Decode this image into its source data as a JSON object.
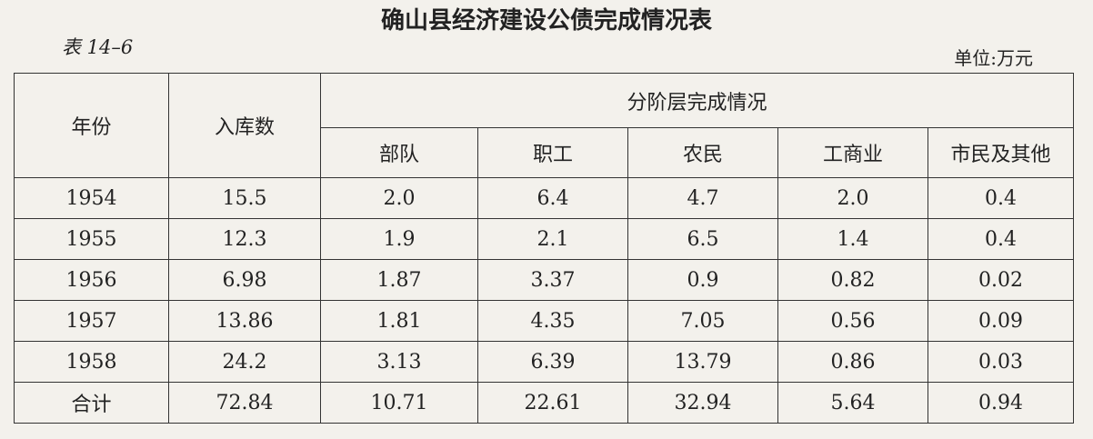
{
  "header": {
    "title": "确山县经济建设公债完成情况表",
    "table_label": "表 14–6",
    "unit": "单位:万元"
  },
  "table": {
    "header": {
      "year": "年份",
      "stored": "入库数",
      "group": "分阶层完成情况",
      "subcolumns": [
        "部队",
        "职工",
        "农民",
        "工商业",
        "市民及其他"
      ]
    },
    "rows": [
      [
        "1954",
        "15.5",
        "2.0",
        "6.4",
        "4.7",
        "2.0",
        "0.4"
      ],
      [
        "1955",
        "12.3",
        "1.9",
        "2.1",
        "6.5",
        "1.4",
        "0.4"
      ],
      [
        "1956",
        "6.98",
        "1.87",
        "3.37",
        "0.9",
        "0.82",
        "0.02"
      ],
      [
        "1957",
        "13.86",
        "1.81",
        "4.35",
        "7.05",
        "0.56",
        "0.09"
      ],
      [
        "1958",
        "24.2",
        "3.13",
        "6.39",
        "13.79",
        "0.86",
        "0.03"
      ],
      [
        "合计",
        "72.84",
        "10.71",
        "22.61",
        "32.94",
        "5.64",
        "0.94"
      ]
    ]
  }
}
